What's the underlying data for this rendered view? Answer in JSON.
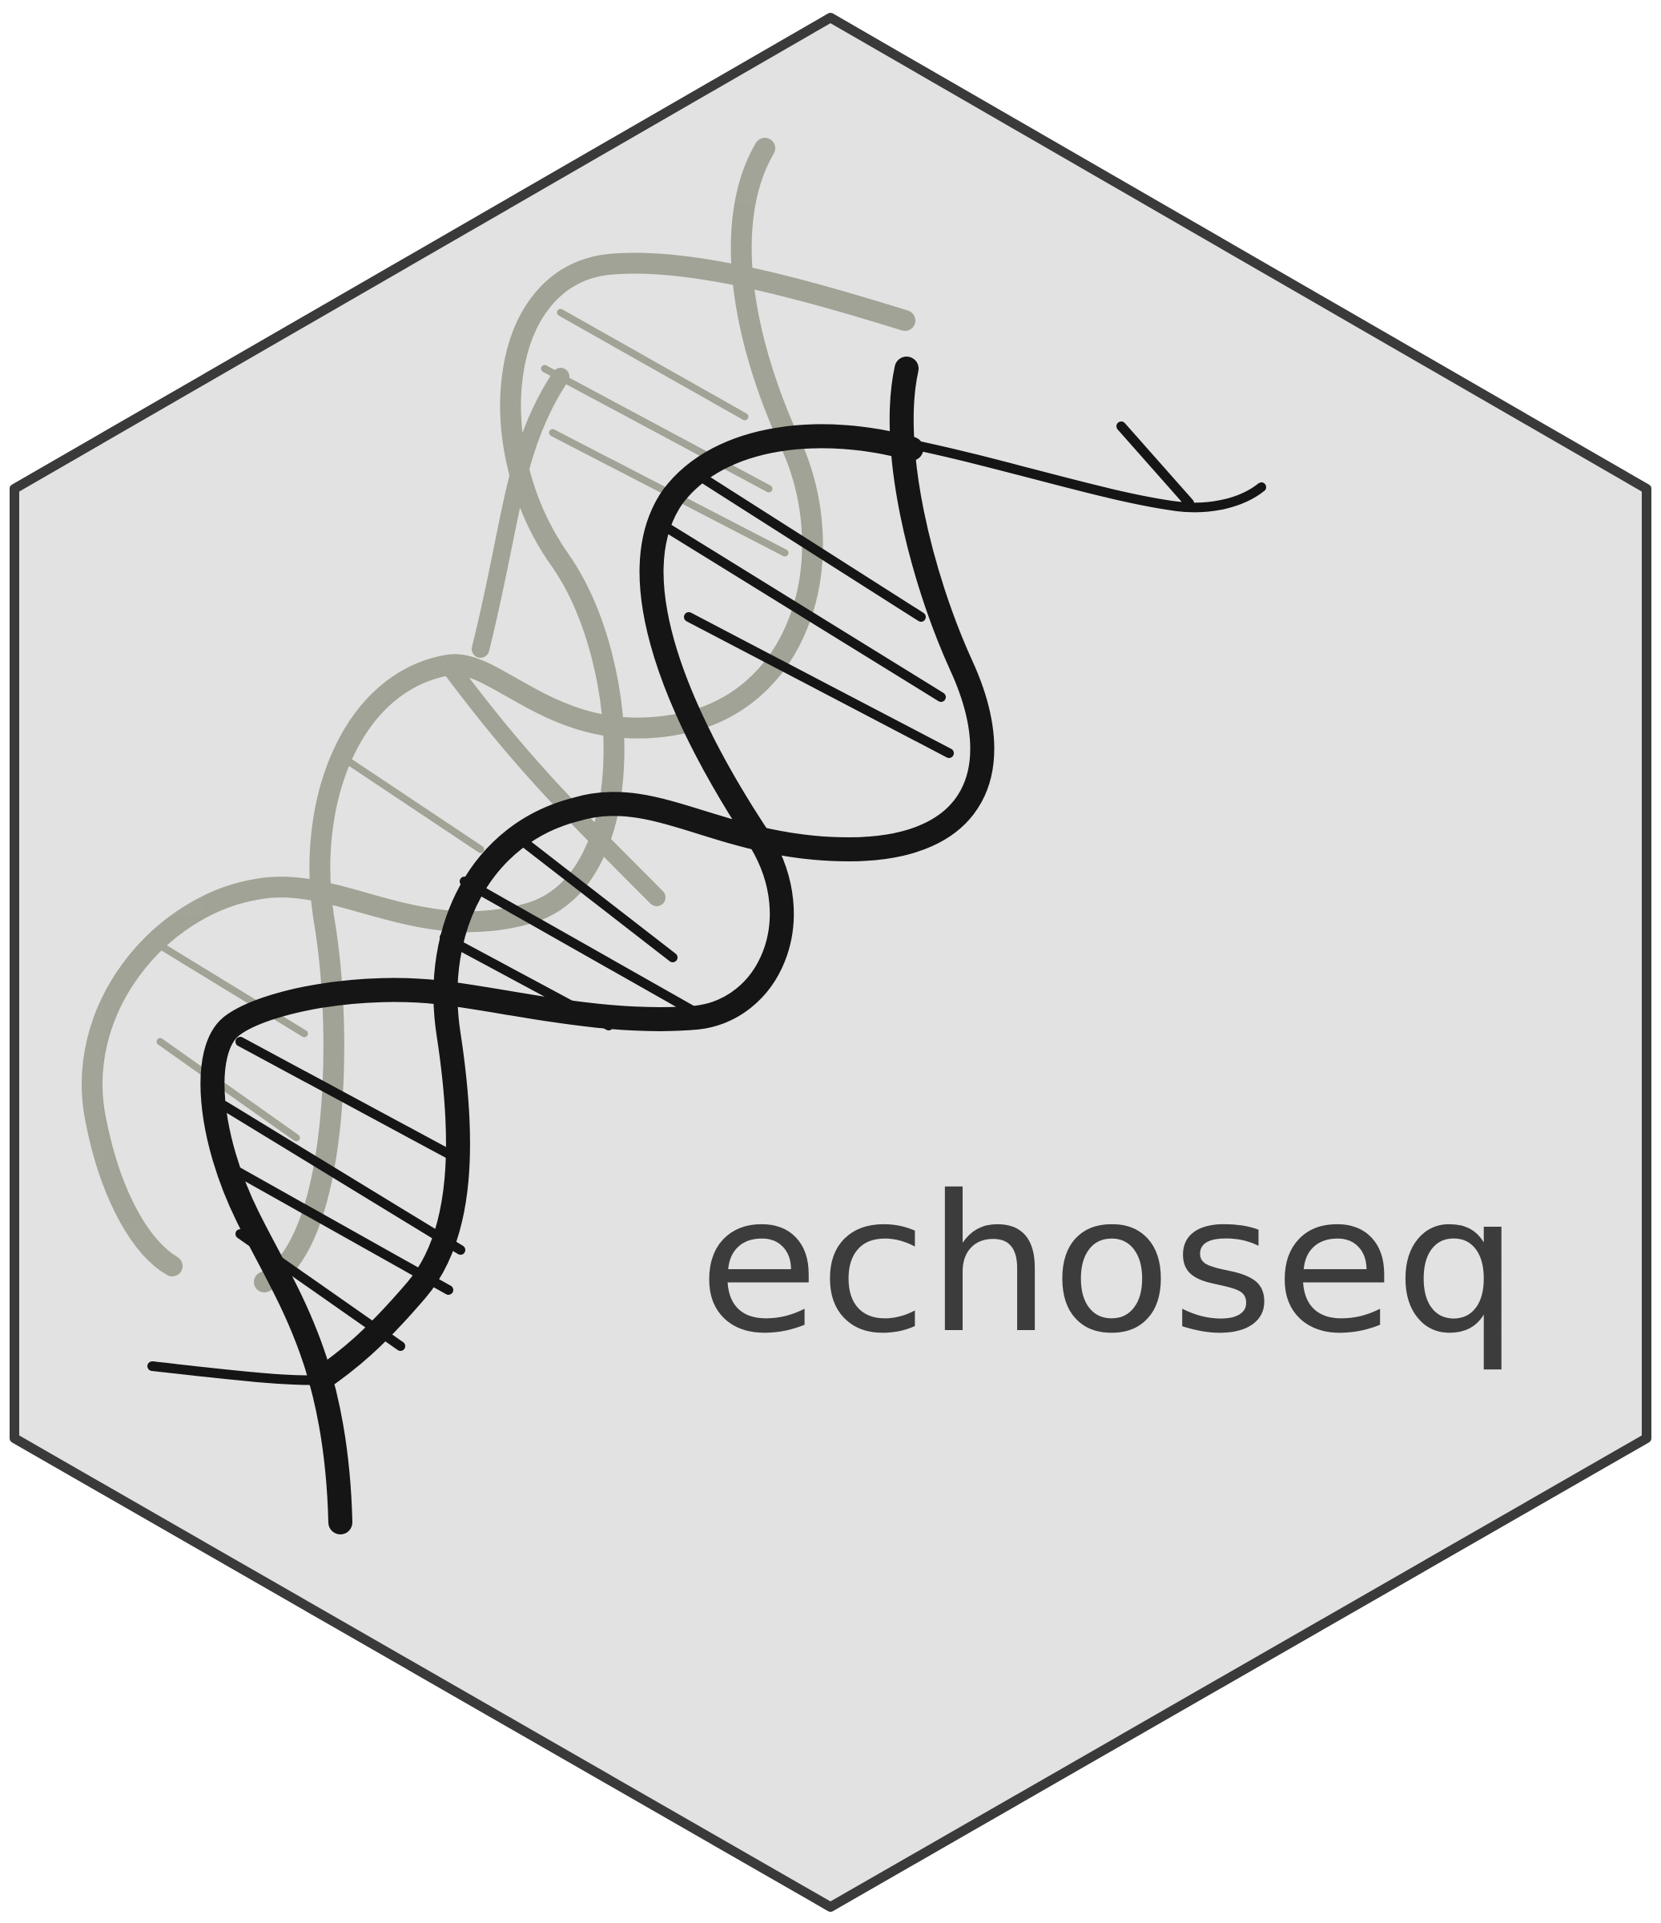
{
  "logo": {
    "wordmark": "echoseq",
    "icon": "dna-double-helix-icon"
  },
  "colors": {
    "hex_fill": "#e2e2e2",
    "hex_border": "#3a3a3a",
    "helix_front": "#151515",
    "helix_back": "#9b9e8f",
    "text": "#3c3c3c",
    "background": "#ffffff"
  }
}
